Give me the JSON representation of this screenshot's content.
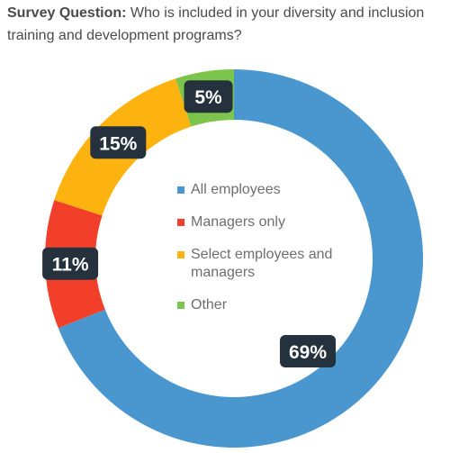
{
  "header": {
    "label": "Survey Question:",
    "text": " Who is included in your diversity and inclusion training and development programs?"
  },
  "chart_data": {
    "type": "pie",
    "categories": [
      "All employees",
      "Managers only",
      "Select employees and managers",
      "Other"
    ],
    "values": [
      69,
      11,
      15,
      5
    ],
    "value_labels": [
      "69%",
      "11%",
      "15%",
      "5%"
    ],
    "colors": [
      "#4a97d0",
      "#f23f2a",
      "#fcb20f",
      "#7dc44c"
    ],
    "legend_placement": "center"
  },
  "theme": {
    "badge_bg": "#25313c",
    "badge_text": "#ffffff"
  }
}
